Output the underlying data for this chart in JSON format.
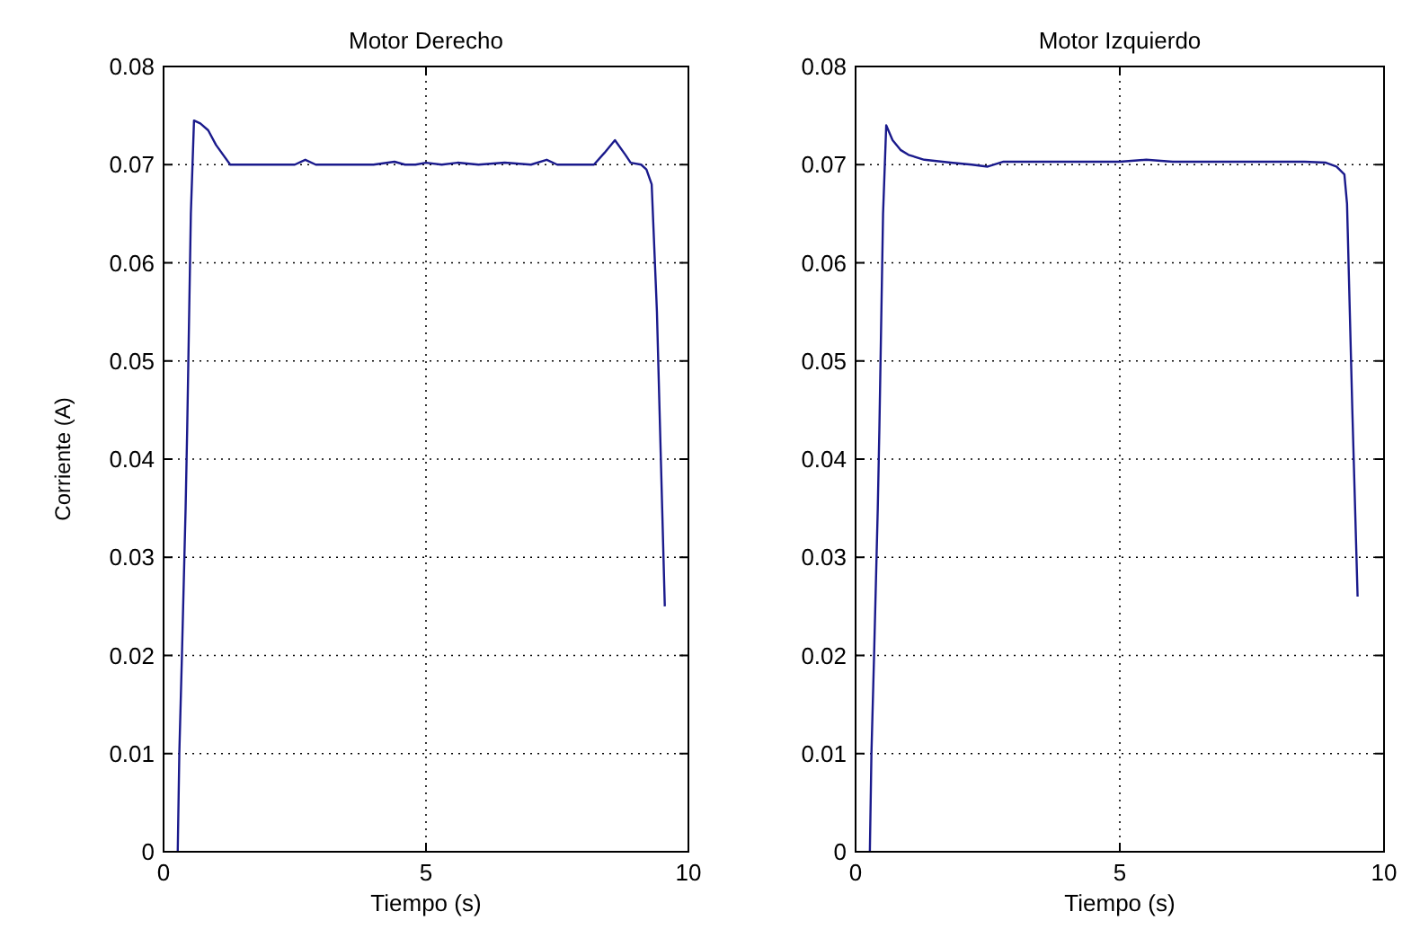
{
  "chart_data": [
    {
      "type": "line",
      "title": "Motor Derecho",
      "xlabel": "Tiempo (s)",
      "ylabel": "Corriente (A)",
      "xlim": [
        0,
        10
      ],
      "xticks": [
        0,
        5,
        10
      ],
      "ylim": [
        0,
        0.08
      ],
      "yticks": [
        0,
        0.01,
        0.02,
        0.03,
        0.04,
        0.05,
        0.06,
        0.07,
        0.08
      ],
      "grid": true,
      "line_style": "solid",
      "marker": "none",
      "series": [
        {
          "color": "#1a1a8c",
          "x": [
            0.27,
            0.3,
            0.35,
            0.42,
            0.45,
            0.52,
            0.58,
            0.7,
            0.85,
            1.0,
            1.27,
            1.8,
            2.5,
            2.7,
            2.9,
            3.5,
            4.0,
            4.4,
            4.6,
            4.8,
            5.0,
            5.3,
            5.6,
            6.0,
            6.5,
            7.0,
            7.3,
            7.5,
            7.8,
            8.2,
            8.4,
            8.6,
            8.8,
            8.9,
            9.1,
            9.2,
            9.3,
            9.4,
            9.5,
            9.55
          ],
          "values": [
            0,
            0.01,
            0.02,
            0.035,
            0.043,
            0.065,
            0.0745,
            0.0742,
            0.0735,
            0.072,
            0.07,
            0.07,
            0.07,
            0.0705,
            0.07,
            0.07,
            0.07,
            0.0703,
            0.07,
            0.07,
            0.0702,
            0.07,
            0.0702,
            0.07,
            0.0702,
            0.07,
            0.0705,
            0.07,
            0.07,
            0.07,
            0.0712,
            0.0725,
            0.071,
            0.0702,
            0.07,
            0.0695,
            0.068,
            0.055,
            0.035,
            0.025
          ]
        }
      ]
    },
    {
      "type": "line",
      "title": "Motor Izquierdo",
      "xlabel": "Tiempo (s)",
      "xlim": [
        0,
        10
      ],
      "xticks": [
        0,
        5,
        10
      ],
      "ylim": [
        0,
        0.08
      ],
      "yticks": [
        0,
        0.01,
        0.02,
        0.03,
        0.04,
        0.05,
        0.06,
        0.07,
        0.08
      ],
      "grid": true,
      "line_style": "solid",
      "marker": "none",
      "series": [
        {
          "color": "#1a1a8c",
          "x": [
            0.27,
            0.3,
            0.35,
            0.42,
            0.45,
            0.52,
            0.58,
            0.7,
            0.85,
            1.0,
            1.3,
            1.8,
            2.2,
            2.5,
            2.8,
            3.5,
            4.0,
            4.5,
            5.0,
            5.5,
            6.0,
            6.5,
            7.0,
            7.5,
            8.0,
            8.5,
            8.9,
            9.1,
            9.25,
            9.3,
            9.4,
            9.5
          ],
          "values": [
            0,
            0.01,
            0.02,
            0.035,
            0.043,
            0.065,
            0.074,
            0.0725,
            0.0715,
            0.071,
            0.0705,
            0.0702,
            0.07,
            0.0698,
            0.0703,
            0.0703,
            0.0703,
            0.0703,
            0.0703,
            0.0705,
            0.0703,
            0.0703,
            0.0703,
            0.0703,
            0.0703,
            0.0703,
            0.0702,
            0.0698,
            0.069,
            0.066,
            0.045,
            0.026
          ]
        }
      ]
    }
  ]
}
